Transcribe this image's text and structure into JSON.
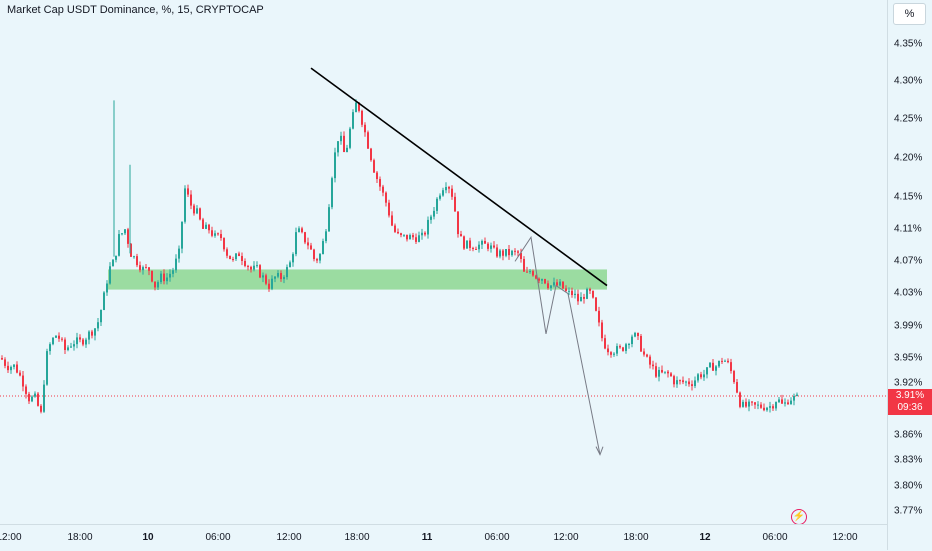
{
  "header": {
    "title": "Market Cap USDT Dominance, %, 15, CRYPTOCAP"
  },
  "scale_button": {
    "label": "%"
  },
  "price_axis": {
    "ticks": [
      "4.35%",
      "4.30%",
      "4.25%",
      "4.20%",
      "4.15%",
      "4.11%",
      "4.07%",
      "4.03%",
      "3.99%",
      "3.95%",
      "3.92%",
      "3.86%",
      "3.83%",
      "3.80%",
      "3.77%"
    ]
  },
  "price_tag": {
    "value": "3.91%",
    "countdown": "09:36"
  },
  "time_axis": {
    "labels": [
      {
        "text": "12:00",
        "bold": false
      },
      {
        "text": "18:00",
        "bold": false
      },
      {
        "text": "10",
        "bold": true
      },
      {
        "text": "06:00",
        "bold": false
      },
      {
        "text": "12:00",
        "bold": false
      },
      {
        "text": "18:00",
        "bold": false
      },
      {
        "text": "11",
        "bold": true
      },
      {
        "text": "06:00",
        "bold": false
      },
      {
        "text": "12:00",
        "bold": false
      },
      {
        "text": "18:00",
        "bold": false
      },
      {
        "text": "12",
        "bold": true
      },
      {
        "text": "06:00",
        "bold": false
      },
      {
        "text": "12:00",
        "bold": false
      }
    ]
  },
  "colors": {
    "up": "#26a69a",
    "down": "#f23645",
    "zone": "#66cc66",
    "trendline": "#000000",
    "projection": "#787b86",
    "background": "#eaf6fb"
  },
  "icons": {
    "flash": "lightning-icon"
  },
  "chart_data": {
    "type": "candlestick",
    "title": "Market Cap USDT Dominance, %, 15, CRYPTOCAP",
    "unit": "%",
    "last_price": 3.91,
    "ylim": [
      3.75,
      4.37
    ],
    "support_zone": [
      4.045,
      4.07
    ],
    "path": [
      [
        0,
        3.96
      ],
      [
        6,
        3.95
      ],
      [
        14,
        3.95
      ],
      [
        22,
        3.93
      ],
      [
        28,
        3.91
      ],
      [
        34,
        3.91
      ],
      [
        40,
        3.89
      ],
      [
        45,
        3.96
      ],
      [
        50,
        3.98
      ],
      [
        56,
        3.99
      ],
      [
        64,
        3.97
      ],
      [
        72,
        3.98
      ],
      [
        80,
        3.98
      ],
      [
        88,
        3.99
      ],
      [
        96,
        4.0
      ],
      [
        102,
        4.03
      ],
      [
        108,
        4.07
      ],
      [
        113,
        4.08
      ],
      [
        118,
        4.11
      ],
      [
        124,
        4.12
      ],
      [
        130,
        4.09
      ],
      [
        136,
        4.08
      ],
      [
        142,
        4.07
      ],
      [
        148,
        4.07
      ],
      [
        154,
        4.05
      ],
      [
        160,
        4.06
      ],
      [
        166,
        4.06
      ],
      [
        172,
        4.07
      ],
      [
        178,
        4.09
      ],
      [
        184,
        4.17
      ],
      [
        190,
        4.15
      ],
      [
        196,
        4.14
      ],
      [
        202,
        4.12
      ],
      [
        208,
        4.12
      ],
      [
        214,
        4.11
      ],
      [
        220,
        4.11
      ],
      [
        226,
        4.09
      ],
      [
        232,
        4.08
      ],
      [
        238,
        4.09
      ],
      [
        244,
        4.08
      ],
      [
        250,
        4.07
      ],
      [
        256,
        4.07
      ],
      [
        262,
        4.06
      ],
      [
        268,
        4.05
      ],
      [
        274,
        4.06
      ],
      [
        280,
        4.06
      ],
      [
        286,
        4.07
      ],
      [
        290,
        4.08
      ],
      [
        296,
        4.12
      ],
      [
        302,
        4.11
      ],
      [
        308,
        4.1
      ],
      [
        314,
        4.08
      ],
      [
        320,
        4.09
      ],
      [
        326,
        4.13
      ],
      [
        332,
        4.2
      ],
      [
        338,
        4.24
      ],
      [
        344,
        4.21
      ],
      [
        350,
        4.25
      ],
      [
        356,
        4.28
      ],
      [
        362,
        4.25
      ],
      [
        368,
        4.22
      ],
      [
        374,
        4.19
      ],
      [
        380,
        4.17
      ],
      [
        386,
        4.15
      ],
      [
        392,
        4.12
      ],
      [
        398,
        4.11
      ],
      [
        404,
        4.11
      ],
      [
        410,
        4.11
      ],
      [
        416,
        4.11
      ],
      [
        422,
        4.11
      ],
      [
        428,
        4.13
      ],
      [
        434,
        4.15
      ],
      [
        440,
        4.17
      ],
      [
        446,
        4.18
      ],
      [
        452,
        4.16
      ],
      [
        458,
        4.11
      ],
      [
        464,
        4.1
      ],
      [
        470,
        4.1
      ],
      [
        476,
        4.1
      ],
      [
        482,
        4.1
      ],
      [
        488,
        4.1
      ],
      [
        494,
        4.09
      ],
      [
        500,
        4.09
      ],
      [
        506,
        4.09
      ],
      [
        512,
        4.09
      ],
      [
        518,
        4.09
      ],
      [
        524,
        4.06
      ],
      [
        530,
        4.07
      ],
      [
        536,
        4.06
      ],
      [
        542,
        4.06
      ],
      [
        548,
        4.05
      ],
      [
        554,
        4.05
      ],
      [
        560,
        4.05
      ],
      [
        566,
        4.04
      ],
      [
        572,
        4.04
      ],
      [
        578,
        4.03
      ],
      [
        584,
        4.04
      ],
      [
        590,
        4.04
      ],
      [
        596,
        4.01
      ],
      [
        602,
        3.98
      ],
      [
        608,
        3.97
      ],
      [
        614,
        3.97
      ],
      [
        620,
        3.97
      ],
      [
        626,
        3.98
      ],
      [
        632,
        3.99
      ],
      [
        638,
        3.98
      ],
      [
        644,
        3.96
      ],
      [
        650,
        3.95
      ],
      [
        656,
        3.94
      ],
      [
        662,
        3.94
      ],
      [
        668,
        3.94
      ],
      [
        674,
        3.93
      ],
      [
        680,
        3.93
      ],
      [
        686,
        3.93
      ],
      [
        692,
        3.93
      ],
      [
        698,
        3.94
      ],
      [
        704,
        3.94
      ],
      [
        710,
        3.95
      ],
      [
        716,
        3.95
      ],
      [
        722,
        3.96
      ],
      [
        728,
        3.95
      ],
      [
        734,
        3.93
      ],
      [
        740,
        3.9
      ],
      [
        746,
        3.9
      ],
      [
        752,
        3.9
      ],
      [
        758,
        3.9
      ],
      [
        764,
        3.9
      ],
      [
        770,
        3.9
      ],
      [
        776,
        3.91
      ],
      [
        782,
        3.9
      ],
      [
        788,
        3.91
      ],
      [
        794,
        3.91
      ],
      [
        798,
        3.91
      ]
    ],
    "spikes": [
      {
        "x": 114,
        "high": 4.28
      },
      {
        "x": 130,
        "high": 4.2
      }
    ],
    "trendline": [
      [
        311,
        4.32
      ],
      [
        607,
        4.05
      ]
    ],
    "projection": [
      [
        515,
        4.08
      ],
      [
        531,
        4.11
      ],
      [
        546,
        3.99
      ],
      [
        556,
        4.05
      ],
      [
        568,
        4.04
      ],
      [
        600,
        3.84
      ]
    ],
    "projection_arrow": true
  }
}
